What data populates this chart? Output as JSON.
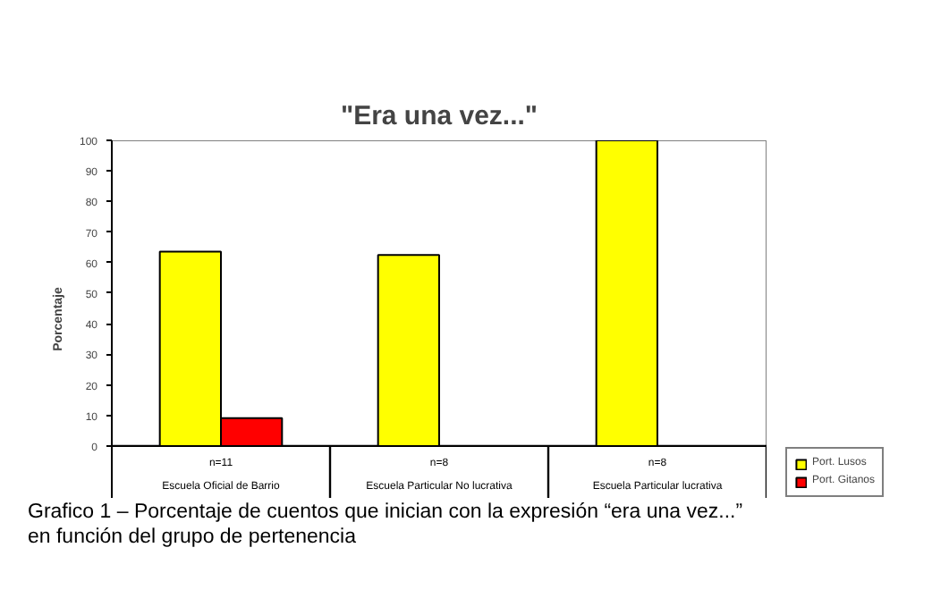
{
  "chart_data": {
    "type": "bar",
    "title": "\"Era una vez...\"",
    "ylabel": "Porcentaje",
    "categories": [
      "Escuela Oficial de Barrio",
      "Escuela Particular No lucrativa",
      "Escuela Particular lucrativa"
    ],
    "series": [
      {
        "name": "Port. Lusos",
        "color": "#ffff00",
        "values": [
          63.6,
          62.5,
          100
        ]
      },
      {
        "name": "Port. Gitanos",
        "color": "#ff0000",
        "values": [
          9.1,
          null,
          null
        ]
      }
    ],
    "ylim": [
      0,
      100
    ],
    "yticks": [
      0,
      10,
      20,
      30,
      40,
      50,
      60,
      70,
      80,
      90,
      100
    ],
    "legend": "right",
    "annotations": [
      "n=11",
      "n=8",
      "n=8",
      "Grafico 1 – Porcentaje de cuentos que inician con la expresión “era una vez...” en función del grupo de pertenencia"
    ]
  }
}
